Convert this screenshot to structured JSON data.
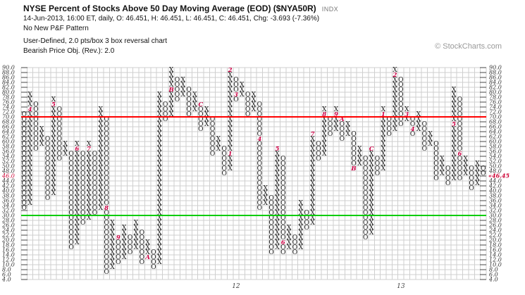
{
  "header": {
    "title": "NYSE Percent of Stocks Above 50 Day Moving Average (EOD) ($NYA50R)",
    "symbol_type": "INDX",
    "quote_line": "14-Jun-2013, 16:00 ET, daily, O: 46.451, H: 46.451, L: 46.451, C: 46.451, Chg: -3.693 (-7.36%)",
    "pattern_line": "No New P&F Pattern",
    "settings_line": "User-Defined, 2.0 pts/box 3 box reversal chart",
    "objective_line": "Bearish Price Obj. (Rev.): 2.0",
    "copyright": "© StockCharts.com"
  },
  "colors": {
    "grid": "#cfcfcf",
    "tick": "#444444",
    "axis_label": "#333333",
    "symbol": "#1a1a1a",
    "month_mark": "#cc0044",
    "resistance_line": "#ff0000",
    "support_line": "#00cc00",
    "current_price": "#cc0033",
    "year_label": "#444444"
  },
  "chart_data": {
    "type": "point-and-figure",
    "title": "NYSE Percent of Stocks Above 50 Day Moving Average (EOD) ($NYA50R)",
    "box_size": 2.0,
    "reversal": 3,
    "y_axis": {
      "max": 90,
      "min": 4,
      "step": 2,
      "label_decimals": 1
    },
    "overlays": [
      {
        "type": "hline",
        "value": 70,
        "color_key": "resistance_line"
      },
      {
        "type": "hline",
        "value": 30,
        "color_key": "support_line"
      }
    ],
    "left_axis_highlight": {
      "value": 46,
      "label": "46.0"
    },
    "last_price_label": {
      "text": "«46.45",
      "value": 46
    },
    "x_axis_years": [
      {
        "label": "12",
        "column": 36
      },
      {
        "label": "13",
        "column": 64
      }
    ],
    "columns": [
      {
        "t": "O",
        "lo": 32,
        "hi": 70
      },
      {
        "t": "X",
        "lo": 34,
        "hi": 78,
        "m": {
          "72": "4"
        }
      },
      {
        "t": "O",
        "lo": 56,
        "hi": 74
      },
      {
        "t": "X",
        "lo": 58,
        "hi": 64
      },
      {
        "t": "O",
        "lo": 36,
        "hi": 60
      },
      {
        "t": "X",
        "lo": 38,
        "hi": 76,
        "m": {
          "74": "5"
        }
      },
      {
        "t": "O",
        "lo": 52,
        "hi": 72
      },
      {
        "t": "X",
        "lo": 54,
        "hi": 58
      },
      {
        "t": "O",
        "lo": 16,
        "hi": 54
      },
      {
        "t": "X",
        "lo": 18,
        "hi": 58,
        "m": {
          "56": "6"
        }
      },
      {
        "t": "O",
        "lo": 26,
        "hi": 54
      },
      {
        "t": "X",
        "lo": 28,
        "hi": 58,
        "m": {
          "56": "7"
        }
      },
      {
        "t": "O",
        "lo": 30,
        "hi": 54
      },
      {
        "t": "X",
        "lo": 32,
        "hi": 72
      },
      {
        "t": "O",
        "lo": 6,
        "hi": 68,
        "m": {
          "32": "8"
        }
      },
      {
        "t": "X",
        "lo": 8,
        "hi": 26
      },
      {
        "t": "O",
        "lo": 10,
        "hi": 20,
        "m": {
          "20": "9"
        }
      },
      {
        "t": "X",
        "lo": 12,
        "hi": 24
      },
      {
        "t": "O",
        "lo": 14,
        "hi": 20
      },
      {
        "t": "X",
        "lo": 16,
        "hi": 26
      },
      {
        "t": "O",
        "lo": 10,
        "hi": 22
      },
      {
        "t": "X",
        "lo": 12,
        "hi": 18,
        "m": {
          "12": "A"
        }
      },
      {
        "t": "O",
        "lo": 8,
        "hi": 14
      },
      {
        "t": "X",
        "lo": 10,
        "hi": 78
      },
      {
        "t": "O",
        "lo": 68,
        "hi": 74
      },
      {
        "t": "X",
        "lo": 70,
        "hi": 88,
        "m": {
          "80": "B"
        }
      },
      {
        "t": "O",
        "lo": 76,
        "hi": 84
      },
      {
        "t": "X",
        "lo": 78,
        "hi": 84
      },
      {
        "t": "O",
        "lo": 70,
        "hi": 80
      },
      {
        "t": "X",
        "lo": 72,
        "hi": 78
      },
      {
        "t": "O",
        "lo": 64,
        "hi": 74,
        "m": {
          "74": "C"
        }
      },
      {
        "t": "X",
        "lo": 66,
        "hi": 72
      },
      {
        "t": "O",
        "lo": 54,
        "hi": 68
      },
      {
        "t": "X",
        "lo": 56,
        "hi": 60
      },
      {
        "t": "O",
        "lo": 46,
        "hi": 56
      },
      {
        "t": "X",
        "lo": 48,
        "hi": 88,
        "m": {
          "54": "1",
          "88": "2"
        }
      },
      {
        "t": "O",
        "lo": 76,
        "hi": 84,
        "m": {
          "78": "3"
        }
      },
      {
        "t": "X",
        "lo": 78,
        "hi": 82
      },
      {
        "t": "O",
        "lo": 70,
        "hi": 78
      },
      {
        "t": "X",
        "lo": 72,
        "hi": 78
      },
      {
        "t": "O",
        "lo": 32,
        "hi": 74,
        "m": {
          "60": "4"
        }
      },
      {
        "t": "X",
        "lo": 34,
        "hi": 40
      },
      {
        "t": "O",
        "lo": 14,
        "hi": 36
      },
      {
        "t": "X",
        "lo": 16,
        "hi": 56,
        "m": {
          "56": "5"
        }
      },
      {
        "t": "O",
        "lo": 14,
        "hi": 52,
        "m": {
          "18": "6"
        }
      },
      {
        "t": "X",
        "lo": 16,
        "hi": 24
      },
      {
        "t": "O",
        "lo": 14,
        "hi": 20
      },
      {
        "t": "X",
        "lo": 16,
        "hi": 34
      },
      {
        "t": "O",
        "lo": 24,
        "hi": 30
      },
      {
        "t": "X",
        "lo": 26,
        "hi": 62,
        "m": {
          "62": "7"
        }
      },
      {
        "t": "O",
        "lo": 52,
        "hi": 58
      },
      {
        "t": "X",
        "lo": 54,
        "hi": 72,
        "m": {
          "70": "8"
        }
      },
      {
        "t": "O",
        "lo": 62,
        "hi": 68
      },
      {
        "t": "X",
        "lo": 64,
        "hi": 72,
        "m": {
          "70": "9"
        }
      },
      {
        "t": "O",
        "lo": 60,
        "hi": 68,
        "m": {
          "68": "A"
        }
      },
      {
        "t": "X",
        "lo": 62,
        "hi": 66
      },
      {
        "t": "O",
        "lo": 48,
        "hi": 62,
        "m": {
          "48": "B"
        }
      },
      {
        "t": "X",
        "lo": 50,
        "hi": 56
      },
      {
        "t": "O",
        "lo": 20,
        "hi": 52
      },
      {
        "t": "X",
        "lo": 22,
        "hi": 56,
        "m": {
          "56": "C"
        }
      },
      {
        "t": "O",
        "lo": 46,
        "hi": 52
      },
      {
        "t": "X",
        "lo": 48,
        "hi": 72,
        "m": {
          "70": "1"
        }
      },
      {
        "t": "O",
        "lo": 62,
        "hi": 68
      },
      {
        "t": "X",
        "lo": 64,
        "hi": 88,
        "m": {
          "86": "2"
        }
      },
      {
        "t": "O",
        "lo": 66,
        "hi": 84
      },
      {
        "t": "X",
        "lo": 68,
        "hi": 72,
        "m": {
          "70": "3"
        }
      },
      {
        "t": "O",
        "lo": 62,
        "hi": 68,
        "m": {
          "64": "4"
        }
      },
      {
        "t": "X",
        "lo": 64,
        "hi": 70
      },
      {
        "t": "O",
        "lo": 56,
        "hi": 66
      },
      {
        "t": "X",
        "lo": 58,
        "hi": 62
      },
      {
        "t": "O",
        "lo": 44,
        "hi": 58
      },
      {
        "t": "X",
        "lo": 46,
        "hi": 52
      },
      {
        "t": "O",
        "lo": 42,
        "hi": 48
      },
      {
        "t": "X",
        "lo": 44,
        "hi": 80,
        "m": {
          "66": "5"
        }
      },
      {
        "t": "O",
        "lo": 44,
        "hi": 76,
        "m": {
          "54": "6"
        }
      },
      {
        "t": "X",
        "lo": 46,
        "hi": 52
      },
      {
        "t": "O",
        "lo": 40,
        "hi": 48
      },
      {
        "t": "X",
        "lo": 42,
        "hi": 50
      },
      {
        "t": "O",
        "lo": 46,
        "hi": 48
      }
    ]
  }
}
